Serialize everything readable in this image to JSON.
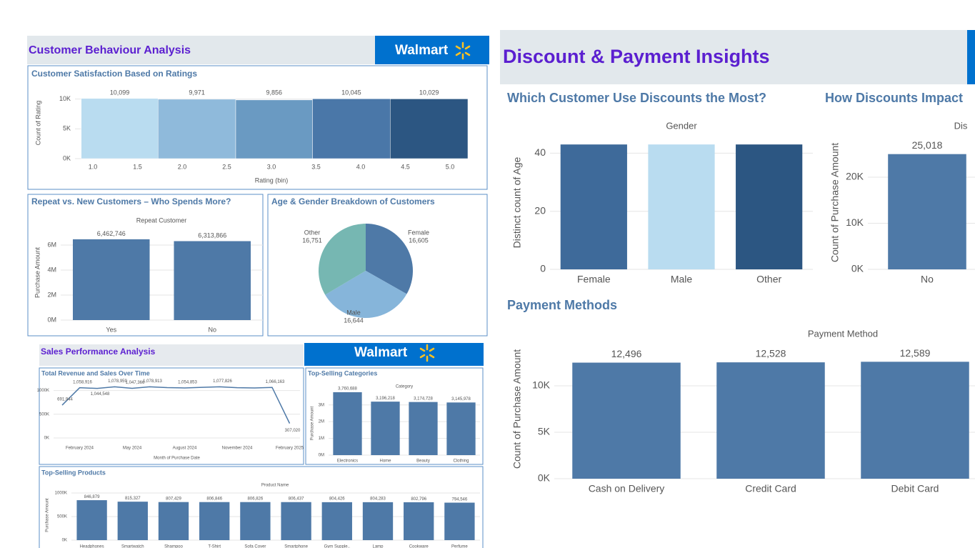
{
  "headers": [
    "Customer Behaviour Analysis",
    "Walmart",
    "Sales Performance Analysis",
    "Walmart",
    "Discount & Payment Insights"
  ],
  "chart_data": [
    {
      "type": "histogram",
      "title": "Customer Satisfaction Based on Ratings",
      "xlabel": "Rating (bin)",
      "ylabel": "Count of Rating",
      "bins": [
        0.87,
        1.73,
        2.6,
        3.46,
        4.33,
        5.2
      ],
      "values": [
        10099,
        9971,
        9856,
        10045,
        10029
      ],
      "value_labels": [
        "10,099",
        "9,971",
        "9,856",
        "10,045",
        "10,029"
      ],
      "colors": [
        "#b9dcf0",
        "#8fbadb",
        "#6a9ac2",
        "#4a77a8",
        "#2c5682"
      ],
      "xlim": [
        0.8,
        5.2
      ],
      "xticks": [
        {
          "value": 1,
          "label": "1.0"
        },
        1.5,
        {
          "value": 2,
          "label": "2.0"
        },
        2.5,
        {
          "value": 3,
          "label": "3.0"
        },
        3.5,
        {
          "value": 4,
          "label": "4.0"
        },
        4.5,
        {
          "value": 5,
          "label": "5.0"
        }
      ],
      "ylim": [
        0,
        12000
      ],
      "yticks": [
        {
          "value": 0,
          "label": "0K"
        },
        {
          "value": 5000,
          "label": "5K"
        },
        {
          "value": 10000,
          "label": "10K"
        }
      ],
      "grid": true
    },
    {
      "type": "bar",
      "title": "Repeat vs. New Customers – Who Spends More?",
      "header": "Repeat Customer",
      "ylabel": "Purchase Amount",
      "categories": [
        "Yes",
        "No"
      ],
      "values": [
        6462746,
        6313866
      ],
      "value_labels": [
        "6,462,746",
        "6,313,866"
      ],
      "color": "#4e79a7",
      "ylim": [
        0,
        7600000
      ],
      "yticks": [
        {
          "value": 0,
          "label": "0M"
        },
        {
          "value": 2000000,
          "label": "2M"
        },
        {
          "value": 4000000,
          "label": "4M"
        },
        {
          "value": 6000000,
          "label": "6M"
        }
      ],
      "grid": true
    },
    {
      "type": "pie",
      "title": "Age & Gender Breakdown of Customers",
      "categories": [
        "Female",
        "Male",
        "Other"
      ],
      "values": [
        16605,
        16644,
        16751
      ],
      "value_labels": [
        "16,605",
        "16,644",
        "16,751"
      ],
      "colors": [
        "#4e79a7",
        "#86b5da",
        "#76b7b2"
      ]
    },
    {
      "type": "line",
      "title": "Total Revenue and Sales Over Time",
      "xlabel": "Month of Purchase Date",
      "x": [
        null,
        "February 2024",
        null,
        null,
        "May 2024",
        null,
        null,
        "August 2024",
        null,
        null,
        "November 2024",
        null,
        null,
        "February 2025"
      ],
      "values": [
        691944,
        1058916,
        1044548,
        1078959,
        1047366,
        1078913,
        1062000,
        1054853,
        1068000,
        1077826,
        1060000,
        1055000,
        1066163,
        307020
      ],
      "value_labels": [
        "691,944",
        "1,058,916",
        "1,044,548",
        "1,078,959",
        "1,047,366",
        "1,078,913",
        null,
        "1,054,853",
        null,
        "1,077,826",
        null,
        null,
        "1,066,163",
        "307,020"
      ],
      "color": "#4e79a7",
      "ylim": [
        0,
        1250000
      ],
      "yticks": [
        {
          "value": 0,
          "label": "0K"
        },
        {
          "value": 500000,
          "label": "500K"
        },
        {
          "value": 1000000,
          "label": "1000K"
        }
      ],
      "grid": true
    },
    {
      "type": "bar",
      "title": "Top-Selling Categories",
      "header": "Category",
      "ylabel": "Purchase Amount",
      "categories": [
        "Electronics",
        "Home",
        "Beauty",
        "Clothing"
      ],
      "values": [
        3760688,
        3196218,
        3174728,
        3145978
      ],
      "value_labels": [
        "3,760,688",
        "3,196,218",
        "3,174,728",
        "3,145,978"
      ],
      "color": "#4e79a7",
      "ylim": [
        0,
        3800000
      ],
      "yticks": [
        {
          "value": 0,
          "label": "0M"
        },
        {
          "value": 1000000,
          "label": "1M"
        },
        {
          "value": 2000000,
          "label": "2M"
        },
        {
          "value": 3000000,
          "label": "3M"
        }
      ],
      "grid": true
    },
    {
      "type": "bar",
      "title": "Top-Selling Products",
      "header": "Product Name",
      "ylabel": "Purchase Amount",
      "categories": [
        "Headphones",
        "Smartwatch",
        "Shampoo",
        "T-Shirt",
        "Sofa Cover",
        "Smartphone",
        "Gym Supple..",
        "Lamp",
        "Cookware",
        "Perfume"
      ],
      "values": [
        846879,
        815327,
        807429,
        806846,
        806826,
        806437,
        804426,
        804283,
        802796,
        794546
      ],
      "value_labels": [
        "846,879",
        "815,327",
        "807,429",
        "806,846",
        "806,826",
        "806,437",
        "804,426",
        "804,283",
        "802,796",
        "794,546"
      ],
      "color": "#4e79a7",
      "ylim": [
        0,
        1060000
      ],
      "yticks": [
        {
          "value": 0,
          "label": "0K"
        },
        {
          "value": 500000,
          "label": "500K"
        },
        {
          "value": 1000000,
          "label": "1000K"
        }
      ],
      "grid": true
    },
    {
      "type": "bar",
      "title": "Which Customer Use Discounts the Most?",
      "header": "Gender",
      "ylabel": "Distinct count of Age",
      "categories": [
        "Female",
        "Male",
        "Other"
      ],
      "values": [
        43,
        43,
        43
      ],
      "colors": [
        "#3e6a9a",
        "#b9dcf0",
        "#2c5682"
      ],
      "ylim": [
        0,
        46
      ],
      "yticks": [
        0,
        20,
        40
      ],
      "grid": true
    },
    {
      "type": "bar",
      "title": "How Discounts Impact",
      "header": "Dis",
      "ylabel": "Count of Purchase Amount",
      "categories": [
        "No"
      ],
      "values": [
        25018
      ],
      "value_labels": [
        "25,018"
      ],
      "color": "#4e79a7",
      "ylim": [
        0,
        29000
      ],
      "yticks": [
        {
          "value": 0,
          "label": "0K"
        },
        {
          "value": 10000,
          "label": "10K"
        },
        {
          "value": 20000,
          "label": "20K"
        }
      ],
      "grid": true
    },
    {
      "type": "bar",
      "title": "Payment Methods",
      "header": "Payment Method",
      "ylabel": "Count of Purchase Amount",
      "categories": [
        "Cash on Delivery",
        "Credit Card",
        "Debit Card"
      ],
      "values": [
        12496,
        12528,
        12589
      ],
      "value_labels": [
        "12,496",
        "12,528",
        "12,589"
      ],
      "color": "#4e79a7",
      "ylim": [
        0,
        15000
      ],
      "yticks": [
        {
          "value": 0,
          "label": "0K"
        },
        {
          "value": 5000,
          "label": "5K"
        },
        {
          "value": 10000,
          "label": "10K"
        }
      ],
      "grid": true
    }
  ]
}
